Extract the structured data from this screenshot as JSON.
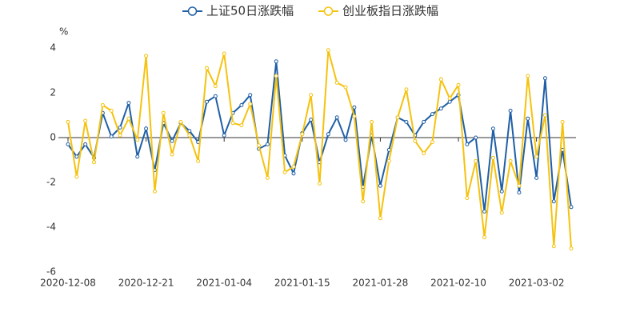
{
  "chart_data": {
    "type": "line",
    "y_label": "%",
    "categories": [
      "2020-12-08",
      null,
      null,
      null,
      null,
      null,
      null,
      null,
      null,
      "2020-12-21",
      null,
      null,
      null,
      null,
      null,
      null,
      null,
      null,
      "2021-01-04",
      null,
      null,
      null,
      null,
      null,
      null,
      null,
      null,
      "2021-01-15",
      null,
      null,
      null,
      null,
      null,
      null,
      null,
      null,
      "2021-01-28",
      null,
      null,
      null,
      null,
      null,
      null,
      null,
      null,
      "2021-02-10",
      null,
      null,
      null,
      null,
      null,
      null,
      null,
      null,
      "2021-03-02",
      null,
      null,
      null,
      null
    ],
    "series": [
      {
        "name": "上证50日涨跌幅",
        "color": "#1f5fa6",
        "values": [
          -0.3,
          -0.85,
          -0.3,
          -0.9,
          1.1,
          0.05,
          0.45,
          1.55,
          -0.85,
          0.4,
          -1.45,
          0.65,
          -0.15,
          0.65,
          0.3,
          -0.2,
          1.6,
          1.85,
          0.1,
          1.1,
          1.45,
          1.9,
          -0.5,
          -0.3,
          3.4,
          -0.8,
          -1.6,
          0.2,
          0.8,
          -1.1,
          0.15,
          0.9,
          -0.1,
          1.35,
          -2.2,
          0.1,
          -2.15,
          -0.55,
          0.9,
          0.7,
          0.1,
          0.7,
          1.05,
          1.3,
          1.6,
          1.9,
          -0.3,
          0.0,
          -3.3,
          0.4,
          -2.4,
          1.2,
          -2.45,
          0.85,
          -1.8,
          2.65,
          -2.85,
          -0.55,
          -3.1
        ]
      },
      {
        "name": "创业板指日涨跌幅",
        "color": "#f5c20f",
        "values": [
          0.7,
          -1.75,
          0.75,
          -1.1,
          1.45,
          1.2,
          0.1,
          0.85,
          -0.1,
          3.65,
          -2.4,
          1.1,
          -0.75,
          0.7,
          0.1,
          -1.05,
          3.1,
          2.3,
          3.75,
          0.65,
          0.55,
          1.5,
          -0.35,
          -1.8,
          2.75,
          -1.55,
          -1.3,
          0.15,
          1.9,
          -2.05,
          3.9,
          2.45,
          2.25,
          0.95,
          -2.85,
          0.7,
          -3.6,
          -1.05,
          0.9,
          2.15,
          -0.15,
          -0.7,
          -0.2,
          2.6,
          1.75,
          2.35,
          -2.7,
          -1.05,
          -4.45,
          -0.9,
          -3.35,
          -1.05,
          -2.15,
          2.75,
          -0.85,
          1.0,
          -4.85,
          0.7,
          -4.95
        ]
      }
    ],
    "ylim": [
      -6,
      4
    ],
    "yticks": [
      -6,
      -4,
      -2,
      0,
      2,
      4
    ]
  }
}
